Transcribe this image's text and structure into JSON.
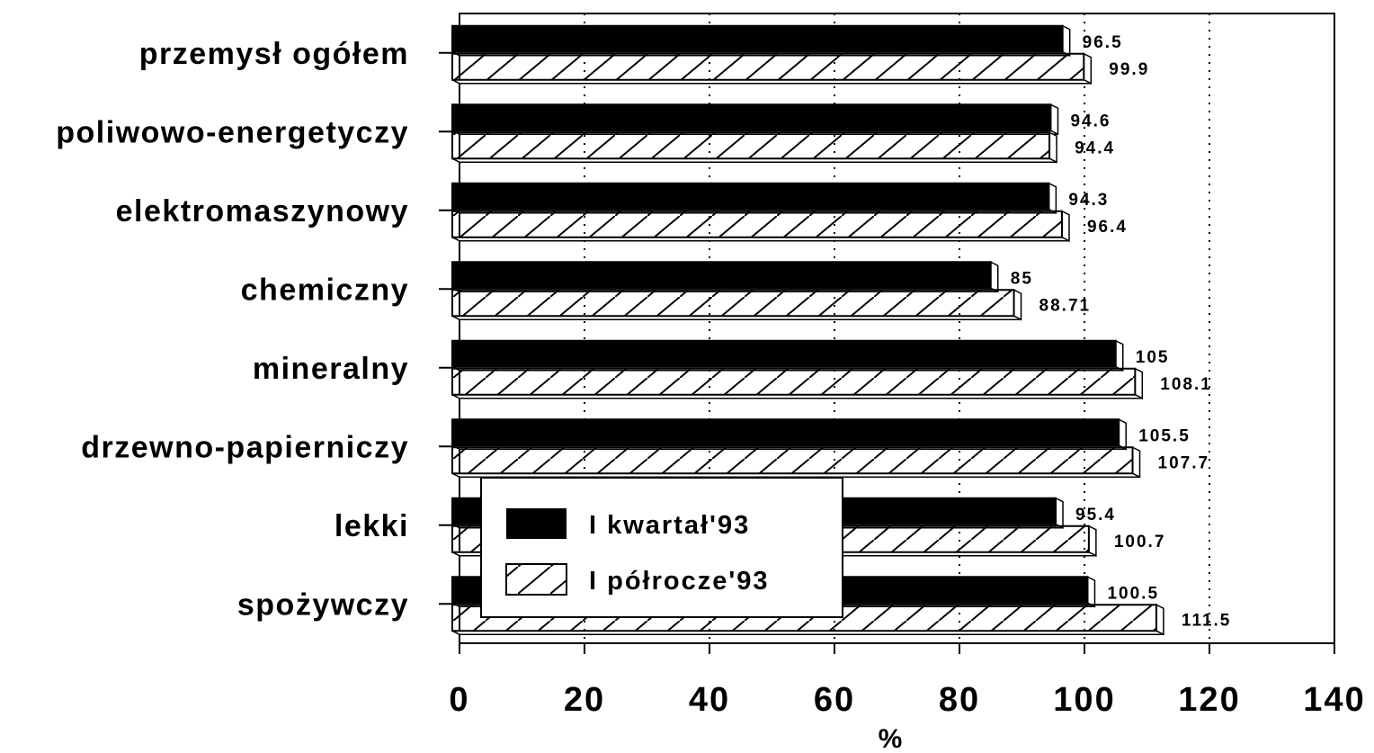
{
  "chart_data": {
    "type": "bar",
    "orientation": "horizontal",
    "categories": [
      "przemysł ogółem",
      "poliwowo-energetyczy",
      "elektromaszynowy",
      "chemiczny",
      "mineralny",
      "drzewno-papierniczy",
      "lekki",
      "spożywczy"
    ],
    "series": [
      {
        "name": "I kwartał'93",
        "fill": "solid",
        "color": "#000000",
        "values": [
          96.5,
          94.6,
          94.3,
          85,
          105,
          105.5,
          95.4,
          100.5
        ],
        "labels": [
          "96.5",
          "94.6",
          "94.3",
          "85",
          "105",
          "105.5",
          "95.4",
          "100.5"
        ]
      },
      {
        "name": "I półrocze'93",
        "fill": "hatched",
        "color": "#ffffff",
        "values": [
          99.9,
          94.4,
          96.4,
          88.71,
          108.1,
          107.7,
          100.7,
          111.5
        ],
        "labels": [
          "99.9",
          "94.4",
          "96.4",
          "88.71",
          "108.1",
          "107.7",
          "100.7",
          "111.5"
        ]
      }
    ],
    "xlabel": "%",
    "xlim": [
      0,
      140
    ],
    "xticks": [
      0,
      20,
      40,
      60,
      80,
      100,
      120,
      140
    ],
    "grid": "vertical dotted",
    "legend": "lower-left, inside plot"
  }
}
